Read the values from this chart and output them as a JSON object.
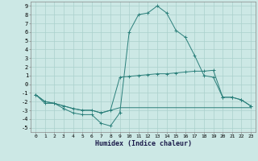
{
  "xlabel": "Humidex (Indice chaleur)",
  "x": [
    0,
    1,
    2,
    3,
    4,
    5,
    6,
    7,
    8,
    9,
    10,
    11,
    12,
    13,
    14,
    15,
    16,
    17,
    18,
    19,
    20,
    21,
    22,
    23
  ],
  "line1": [
    -1.2,
    -2.2,
    -2.2,
    -2.8,
    -3.3,
    -3.5,
    -3.5,
    -4.5,
    -4.8,
    -3.3,
    6.0,
    8.0,
    8.2,
    9.0,
    8.2,
    6.2,
    5.4,
    3.3,
    1.0,
    0.8,
    -1.5,
    -1.5,
    -1.8,
    -2.5
  ],
  "line2": [
    -1.2,
    -2.0,
    -2.2,
    -2.5,
    -2.8,
    -3.0,
    -3.0,
    -3.3,
    -3.0,
    0.8,
    0.9,
    1.0,
    1.1,
    1.2,
    1.2,
    1.3,
    1.4,
    1.5,
    1.5,
    1.6,
    -1.5,
    -1.5,
    -1.8,
    -2.5
  ],
  "line3": [
    -1.2,
    -2.0,
    -2.2,
    -2.5,
    -2.8,
    -3.0,
    -3.0,
    -3.3,
    -3.0,
    -2.7,
    -2.7,
    -2.7,
    -2.7,
    -2.7,
    -2.7,
    -2.7,
    -2.7,
    -2.7,
    -2.7,
    -2.7,
    -2.7,
    -2.7,
    -2.7,
    -2.7
  ],
  "line_color": "#2a7f7a",
  "bg_color": "#cce8e5",
  "grid_color": "#aad0cc",
  "ylim": [
    -5.5,
    9.5
  ],
  "xlim": [
    -0.5,
    23.5
  ],
  "yticks": [
    -5,
    -4,
    -3,
    -2,
    -1,
    0,
    1,
    2,
    3,
    4,
    5,
    6,
    7,
    8,
    9
  ],
  "xticks": [
    0,
    1,
    2,
    3,
    4,
    5,
    6,
    7,
    8,
    9,
    10,
    11,
    12,
    13,
    14,
    15,
    16,
    17,
    18,
    19,
    20,
    21,
    22,
    23
  ]
}
